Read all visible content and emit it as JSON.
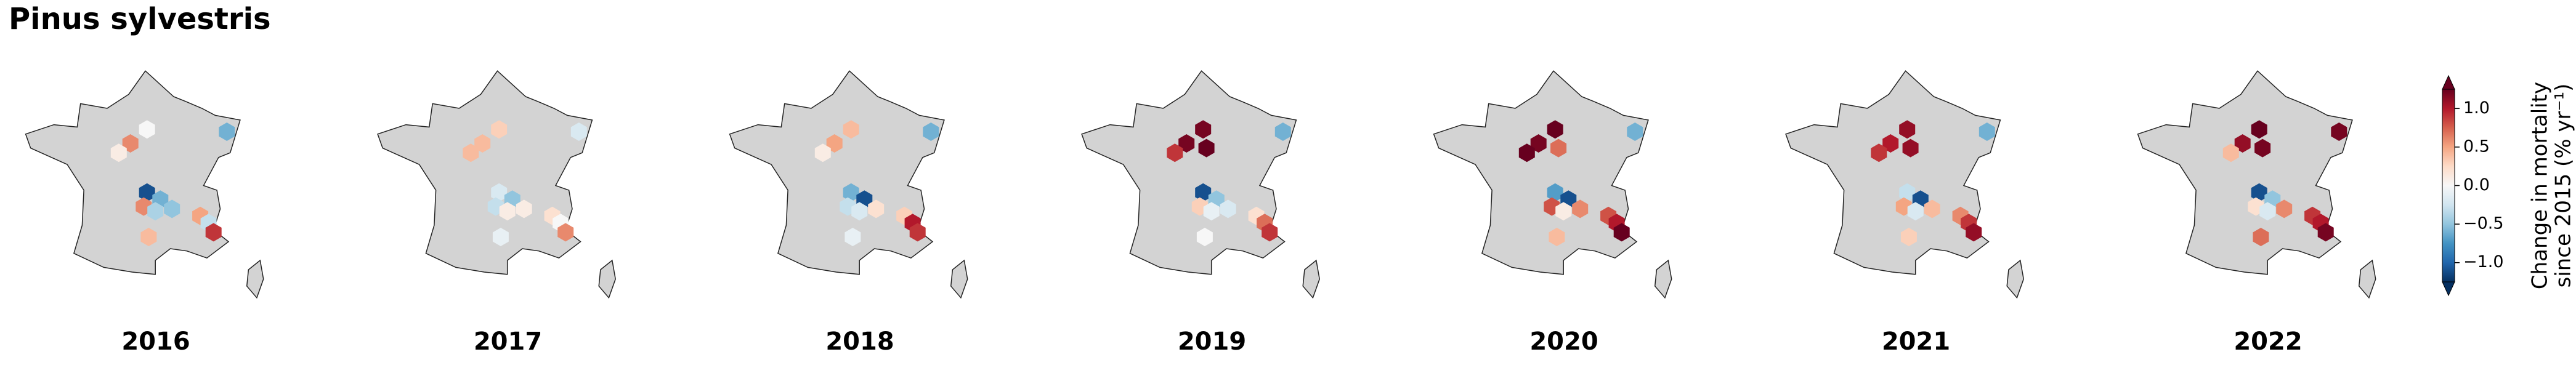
{
  "title": "Pinus sylvestris",
  "cells": [
    {
      "lon": 7.4,
      "lat": 48.5
    },
    {
      "lon": 2.6,
      "lat": 48.6
    },
    {
      "lon": 1.6,
      "lat": 48.0
    },
    {
      "lon": 0.9,
      "lat": 47.6
    },
    {
      "lon": 2.8,
      "lat": 47.8
    },
    {
      "lon": 2.6,
      "lat": 45.9
    },
    {
      "lon": 3.4,
      "lat": 45.6
    },
    {
      "lon": 2.4,
      "lat": 45.3
    },
    {
      "lon": 3.1,
      "lat": 45.1
    },
    {
      "lon": 4.1,
      "lat": 45.2
    },
    {
      "lon": 5.8,
      "lat": 44.9
    },
    {
      "lon": 6.3,
      "lat": 44.6
    },
    {
      "lon": 6.6,
      "lat": 44.2
    },
    {
      "lon": 2.7,
      "lat": 44.0
    }
  ],
  "panels": [
    {
      "year": "2016",
      "values": [
        -0.6,
        0.0,
        0.6,
        0.1,
        null,
        -1.1,
        -0.6,
        0.6,
        -0.4,
        -0.5,
        0.5,
        -0.3,
        0.9,
        0.4
      ]
    },
    {
      "year": "2017",
      "values": [
        -0.2,
        0.3,
        0.4,
        0.4,
        null,
        -0.2,
        -0.5,
        -0.3,
        0.1,
        0.1,
        0.2,
        0.0,
        0.6,
        -0.1
      ]
    },
    {
      "year": "2018",
      "values": [
        -0.6,
        0.4,
        0.5,
        0.1,
        null,
        -0.6,
        -1.1,
        -0.3,
        -0.2,
        0.2,
        0.3,
        1.0,
        0.9,
        -0.1
      ]
    },
    {
      "year": "2019",
      "values": [
        -0.6,
        1.2,
        1.2,
        0.9,
        1.3,
        -1.1,
        -0.5,
        0.3,
        -0.1,
        -0.2,
        0.2,
        0.7,
        0.9,
        0.0
      ]
    },
    {
      "year": "2020",
      "values": [
        -0.6,
        1.3,
        1.2,
        1.3,
        0.7,
        -0.7,
        -1.1,
        0.8,
        0.1,
        0.6,
        0.8,
        1.0,
        1.3,
        0.4
      ]
    },
    {
      "year": "2021",
      "values": [
        -0.6,
        1.1,
        1.0,
        0.9,
        1.1,
        -0.3,
        -1.1,
        0.5,
        -0.2,
        0.4,
        0.6,
        0.9,
        1.1,
        0.3
      ]
    },
    {
      "year": "2022",
      "values": [
        1.2,
        1.3,
        1.1,
        0.4,
        1.2,
        -1.1,
        -0.5,
        0.2,
        -0.2,
        0.6,
        0.9,
        1.0,
        1.2,
        0.7
      ]
    }
  ],
  "colormap": "RdBu_r",
  "clim": [
    -1.25,
    1.25
  ],
  "colorbar_ticks": [
    {
      "value": 1,
      "label": "1.0"
    },
    {
      "value": 0.5,
      "label": "0.5"
    },
    {
      "value": 0,
      "label": "0.0"
    },
    {
      "value": -0.5,
      "label": "−0.5"
    },
    {
      "value": -1,
      "label": "−1.0"
    }
  ],
  "colorbar_label": [
    "Change in mortality",
    "since 2015 (% yr⁻¹)"
  ]
}
